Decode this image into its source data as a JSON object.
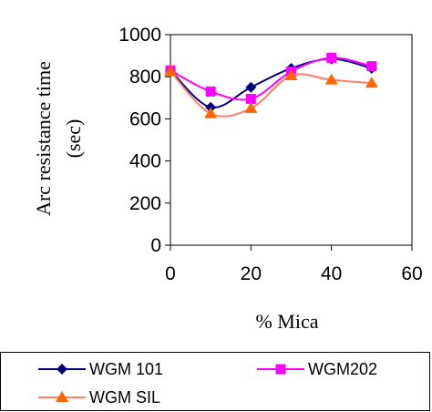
{
  "chart_data": {
    "type": "line",
    "title": "",
    "xlabel": "% Mica",
    "ylabel": "Arc resistance time (sec)",
    "ylabel_lines": [
      "Arc resistance time",
      "(sec)"
    ],
    "xlim": [
      0,
      60
    ],
    "ylim": [
      0,
      1000
    ],
    "x_ticks": [
      "0",
      "20",
      "40",
      "60"
    ],
    "y_ticks": [
      "0",
      "200",
      "400",
      "600",
      "800",
      "1000"
    ],
    "grid": false,
    "legend_position": "bottom",
    "x": [
      0,
      10,
      20,
      30,
      40,
      50
    ],
    "series": [
      {
        "name": "WGM 101",
        "color": "#00007f",
        "marker": "diamond",
        "values": [
          830,
          655,
          750,
          840,
          885,
          840
        ]
      },
      {
        "name": "WGM202",
        "color": "#ff00ff",
        "marker": "square",
        "values": [
          830,
          730,
          695,
          825,
          890,
          850
        ]
      },
      {
        "name": "WGM SIL",
        "color": "#ff7f66",
        "marker_color": "#ff6600",
        "marker": "triangle",
        "values": [
          825,
          625,
          650,
          805,
          785,
          770
        ]
      }
    ]
  }
}
